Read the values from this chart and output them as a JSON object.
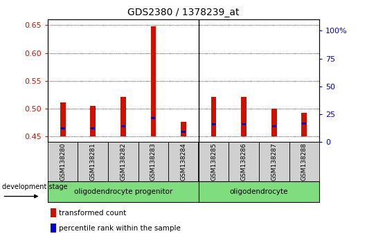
{
  "title": "GDS2380 / 1378239_at",
  "samples": [
    "GSM138280",
    "GSM138281",
    "GSM138282",
    "GSM138283",
    "GSM138284",
    "GSM138285",
    "GSM138286",
    "GSM138287",
    "GSM138288"
  ],
  "red_values": [
    0.511,
    0.505,
    0.521,
    0.648,
    0.477,
    0.521,
    0.521,
    0.5,
    0.492
  ],
  "blue_values": [
    0.465,
    0.465,
    0.468,
    0.483,
    0.458,
    0.472,
    0.472,
    0.468,
    0.473
  ],
  "bar_bottom": 0.45,
  "ylim_left": [
    0.44,
    0.66
  ],
  "yticks_left": [
    0.45,
    0.5,
    0.55,
    0.6,
    0.65
  ],
  "ylim_right": [
    0,
    110
  ],
  "yticks_right": [
    0,
    25,
    50,
    75,
    100
  ],
  "ytick_labels_right": [
    "0",
    "25",
    "50",
    "75",
    "100%"
  ],
  "group1_label": "oligodendrocyte progenitor",
  "group1_count": 5,
  "group2_label": "oligodendrocyte",
  "group2_count": 4,
  "dev_stage_label": "development stage",
  "legend_red": "transformed count",
  "legend_blue": "percentile rank within the sample",
  "bar_width": 0.18,
  "blue_bar_width": 0.14,
  "blue_bar_height": 0.004,
  "red_color": "#cc1100",
  "blue_color": "#0000cc",
  "gray_bg": "#d0d0d0",
  "group_bg": "#7fdd7f",
  "left_tick_color": "#cc1100",
  "right_tick_color": "#0000cc",
  "title_fontsize": 10,
  "tick_fontsize": 8,
  "label_fontsize": 8
}
